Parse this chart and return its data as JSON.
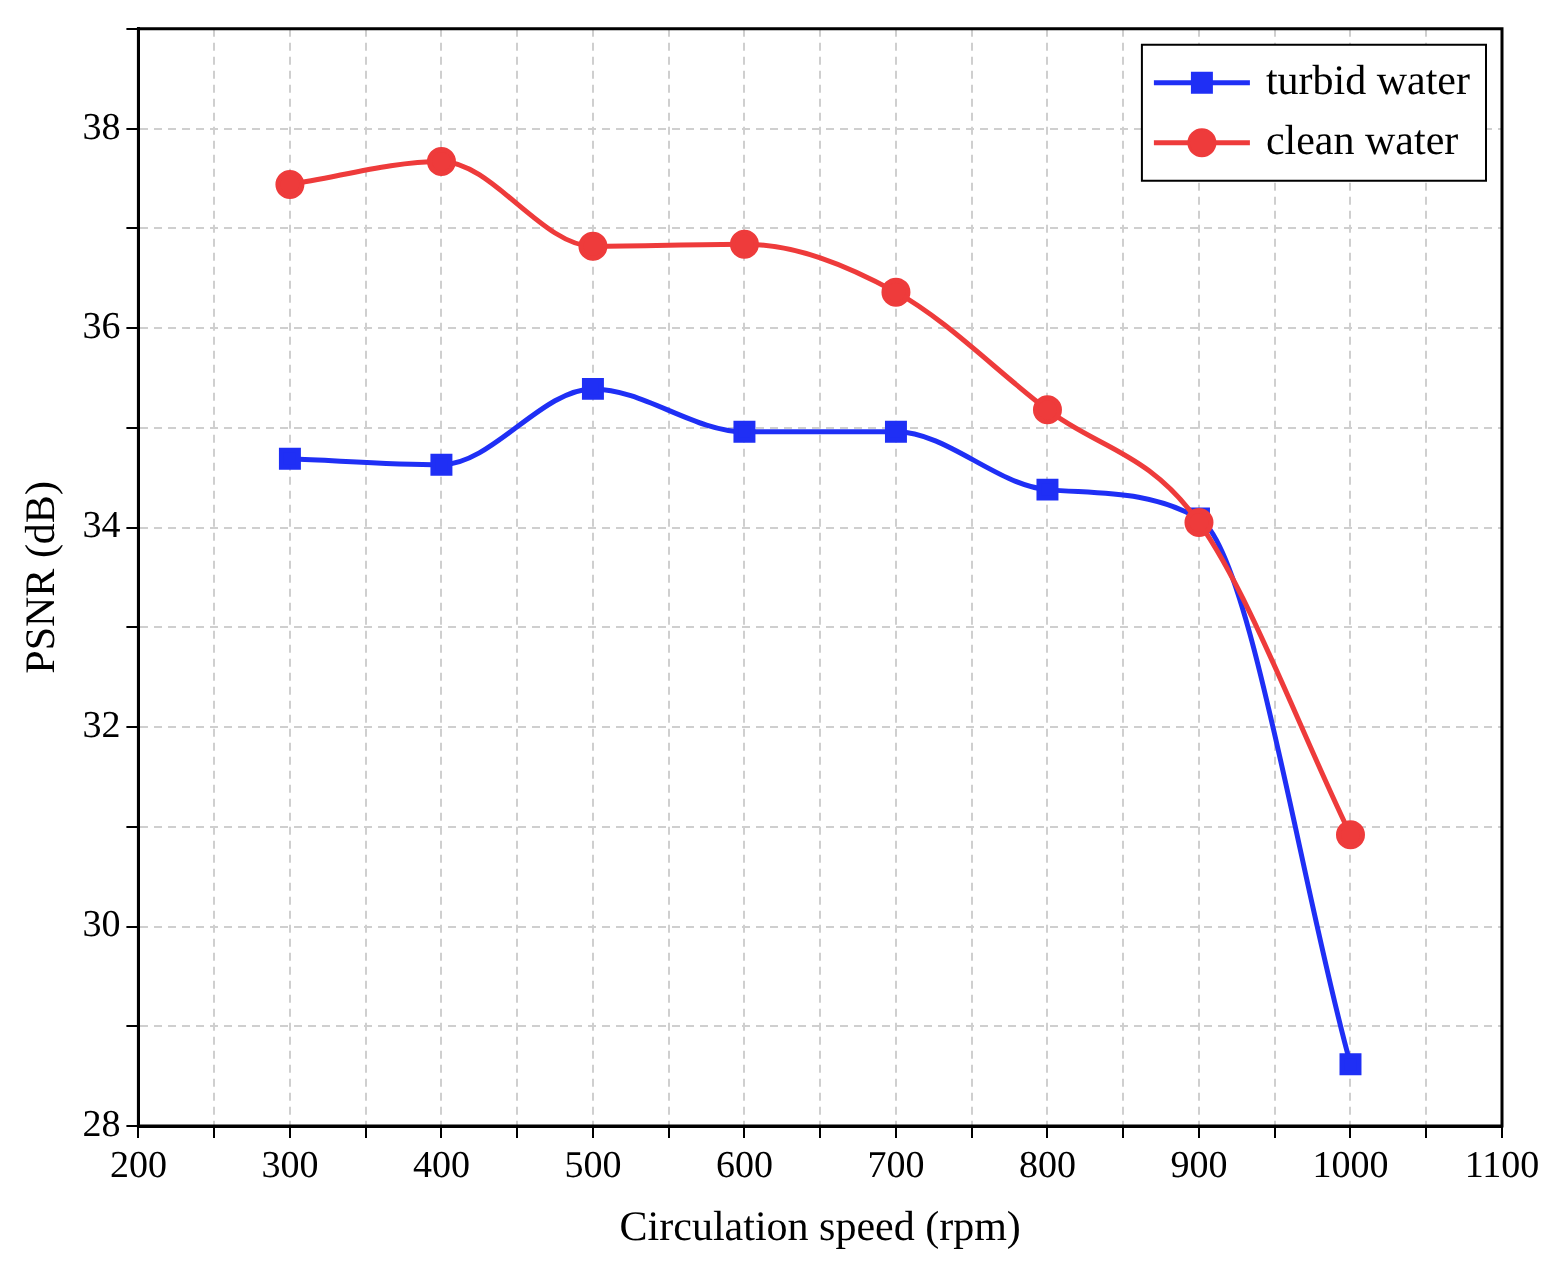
{
  "chart_data": {
    "type": "line",
    "xlabel": "Circulation speed (rpm)",
    "ylabel": "PSNR (dB)",
    "x": [
      300,
      400,
      500,
      600,
      700,
      800,
      900,
      1000
    ],
    "series": [
      {
        "name": "turbid water",
        "color": "#1f2ff5",
        "marker": "square",
        "values": [
          34.69,
          34.63,
          35.39,
          34.96,
          34.96,
          34.38,
          34.09,
          28.62
        ]
      },
      {
        "name": "clean water",
        "color": "#ee3b3b",
        "marker": "circle",
        "values": [
          37.44,
          37.67,
          36.82,
          36.84,
          36.36,
          35.18,
          34.05,
          30.92
        ]
      }
    ],
    "xlim": [
      200,
      1100
    ],
    "xticks": [
      200,
      {
        "value": 250,
        "label": null
      },
      300,
      {
        "value": 350,
        "label": null
      },
      400,
      {
        "value": 450,
        "label": null
      },
      500,
      {
        "value": 550,
        "label": null
      },
      600,
      {
        "value": 650,
        "label": null
      },
      700,
      {
        "value": 750,
        "label": null
      },
      800,
      {
        "value": 850,
        "label": null
      },
      900,
      {
        "value": 950,
        "label": null
      },
      1000,
      {
        "value": 1050,
        "label": null
      },
      1100
    ],
    "ylim": [
      28,
      39
    ],
    "yticks": [
      28,
      {
        "value": 29,
        "label": null
      },
      30,
      {
        "value": 31,
        "label": null
      },
      32,
      {
        "value": 33,
        "label": null
      },
      34,
      {
        "value": 35,
        "label": null
      },
      36,
      {
        "value": 37,
        "label": null
      },
      38,
      {
        "value": 39,
        "label": null
      }
    ],
    "grid": true,
    "legend": "top right",
    "line_style": "solid"
  }
}
